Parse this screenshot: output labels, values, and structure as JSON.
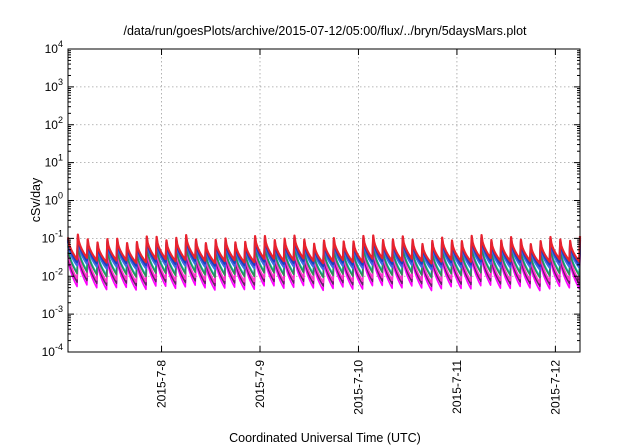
{
  "chart_data": {
    "type": "line",
    "title": "/data/run/goesPlots/archive/2015-07-12/05:00/flux/../bryn/5daysMars.plot",
    "xlabel": "Coordinated Universal Time (UTC)",
    "ylabel": "cSv/day",
    "y_scale": "log",
    "ylim": [
      0.0001,
      10000
    ],
    "xlim_days": [
      7.05,
      12.25
    ],
    "x_ticks": [
      {
        "value": 8,
        "label": "2015-7-8"
      },
      {
        "value": 9,
        "label": "2015-7-9"
      },
      {
        "value": 10,
        "label": "2015-7-10"
      },
      {
        "value": 11,
        "label": "2015-7-11"
      },
      {
        "value": 12,
        "label": "2015-7-12"
      }
    ],
    "y_ticks": [
      {
        "value": 0.0001,
        "base": "10",
        "exp": "-4"
      },
      {
        "value": 0.001,
        "base": "10",
        "exp": "-3"
      },
      {
        "value": 0.01,
        "base": "10",
        "exp": "-2"
      },
      {
        "value": 0.1,
        "base": "10",
        "exp": "-1"
      },
      {
        "value": 1,
        "base": "10",
        "exp": "0"
      },
      {
        "value": 10,
        "base": "10",
        "exp": "1"
      },
      {
        "value": 100,
        "base": "10",
        "exp": "2"
      },
      {
        "value": 1000,
        "base": "10",
        "exp": "3"
      },
      {
        "value": 10000,
        "base": "10",
        "exp": "4"
      }
    ],
    "grid": true,
    "legend": "none",
    "period_days": 0.1,
    "series": [
      {
        "color": "#ff00ff",
        "peak": 0.032,
        "trough": 0.005
      },
      {
        "color": "#6a1b6a",
        "peak": 0.038,
        "trough": 0.0065
      },
      {
        "color": "#ff33cc",
        "peak": 0.045,
        "trough": 0.008
      },
      {
        "color": "#00cccc",
        "peak": 0.06,
        "trough": 0.012
      },
      {
        "color": "#2e8b57",
        "peak": 0.055,
        "trough": 0.011
      },
      {
        "color": "#4169e1",
        "peak": 0.075,
        "trough": 0.018
      },
      {
        "color": "#1e3fbf",
        "peak": 0.085,
        "trough": 0.022
      },
      {
        "color": "#e8222e",
        "peak": 0.095,
        "trough": 0.026
      }
    ]
  }
}
